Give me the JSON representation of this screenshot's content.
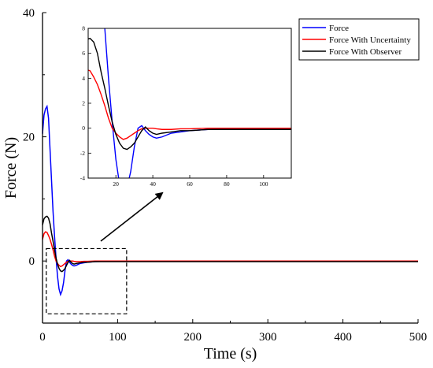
{
  "chart_data": {
    "type": "line",
    "xlabel": "Time (s)",
    "ylabel": "Force (N)",
    "xlim": [
      0,
      500
    ],
    "ylim": [
      -10,
      40
    ],
    "xticks": [
      0,
      100,
      200,
      300,
      400,
      500
    ],
    "yticks": [
      0,
      20,
      40
    ],
    "legend": {
      "placement": "top-right"
    },
    "series": [
      {
        "name": "Force",
        "color": "#0000ff",
        "x": [
          0,
          2,
          4,
          6,
          8,
          10,
          12,
          14,
          16,
          18,
          20,
          22,
          24,
          26,
          28,
          30,
          32,
          34,
          36,
          38,
          40,
          42,
          45,
          50,
          55,
          60,
          70,
          80,
          100,
          120,
          200,
          300,
          400,
          500
        ],
        "y": [
          20.5,
          23.5,
          24.5,
          24.9,
          23.0,
          18.0,
          13.0,
          8.0,
          4.0,
          0.5,
          -2.5,
          -4.5,
          -5.4,
          -4.8,
          -3.5,
          -1.5,
          0.0,
          0.2,
          -0.2,
          -0.5,
          -0.7,
          -0.8,
          -0.7,
          -0.4,
          -0.3,
          -0.2,
          -0.1,
          -0.05,
          -0.05,
          -0.05,
          -0.05,
          -0.05,
          -0.05,
          -0.05
        ]
      },
      {
        "name": "Force With Uncertainty",
        "color": "#ff0000",
        "x": [
          0,
          2,
          4,
          6,
          8,
          10,
          12,
          14,
          16,
          18,
          20,
          22,
          24,
          26,
          28,
          30,
          32,
          34,
          36,
          38,
          40,
          42,
          45,
          50,
          55,
          60,
          70,
          80,
          100,
          120,
          200,
          300,
          400,
          500
        ],
        "y": [
          3.5,
          4.4,
          4.7,
          4.6,
          4.1,
          3.5,
          2.7,
          1.8,
          0.8,
          0.0,
          -0.4,
          -0.7,
          -0.9,
          -0.8,
          -0.6,
          -0.4,
          -0.2,
          -0.05,
          0.0,
          0.0,
          0.0,
          -0.05,
          -0.1,
          -0.1,
          -0.05,
          -0.05,
          0.0,
          0.0,
          0.0,
          0.0,
          0.0,
          0.0,
          0.0,
          0.0
        ]
      },
      {
        "name": "Force With Observer",
        "color": "#000000",
        "x": [
          0,
          2,
          4,
          6,
          8,
          10,
          12,
          14,
          16,
          18,
          20,
          22,
          24,
          26,
          28,
          30,
          32,
          34,
          36,
          38,
          40,
          42,
          45,
          50,
          55,
          60,
          70,
          80,
          100,
          120,
          200,
          300,
          400,
          500
        ],
        "y": [
          5.8,
          6.8,
          7.1,
          7.2,
          6.9,
          6.0,
          4.5,
          3.2,
          1.8,
          0.5,
          -0.5,
          -1.2,
          -1.6,
          -1.7,
          -1.5,
          -1.2,
          -0.7,
          -0.2,
          0.1,
          -0.2,
          -0.4,
          -0.5,
          -0.4,
          -0.3,
          -0.2,
          -0.2,
          -0.1,
          -0.1,
          -0.1,
          -0.1,
          -0.1,
          -0.1,
          -0.1,
          -0.1
        ]
      }
    ],
    "inset": {
      "xlim": [
        5,
        115
      ],
      "ylim": [
        -4,
        8
      ],
      "xticks": [
        20,
        40,
        60,
        80,
        100
      ],
      "yticks": [
        -4,
        -2,
        0,
        2,
        4,
        6,
        8
      ],
      "zoom_region": {
        "xlim": [
          5,
          112
        ],
        "ylim": [
          -8.5,
          2
        ]
      }
    }
  }
}
